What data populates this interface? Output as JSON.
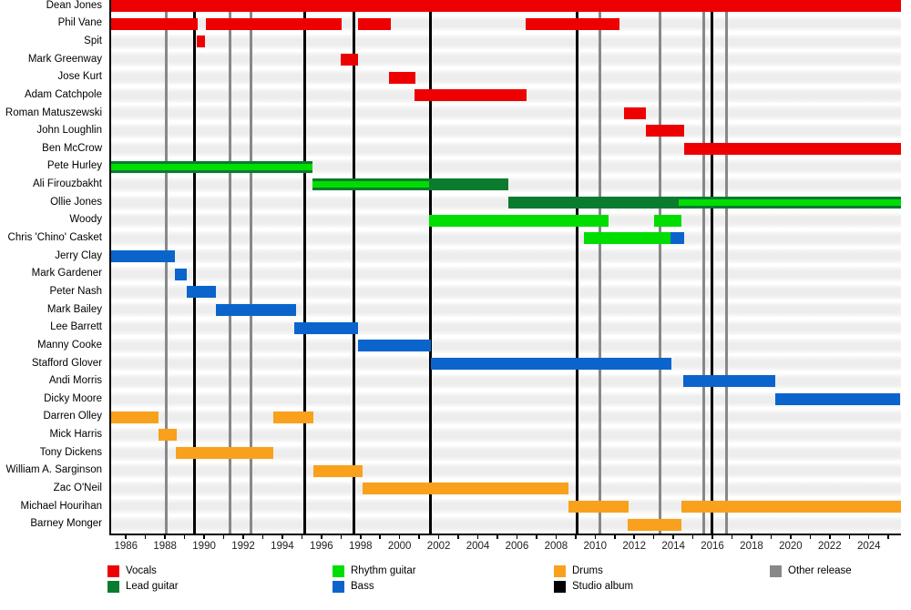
{
  "chart_data": {
    "type": "timeline",
    "description": "Band member history gantt timeline (roles over years) with release markers",
    "x_axis": {
      "min": 1985.15,
      "max": 2025.55,
      "minor_tick_step": 1,
      "minor_tick_start": 1986,
      "minor_tick_end": 2025,
      "tick_labels": [
        1986,
        1988,
        1990,
        1992,
        1994,
        1996,
        1998,
        2000,
        2002,
        2004,
        2006,
        2008,
        2010,
        2012,
        2014,
        2016,
        2018,
        2020,
        2022,
        2024
      ]
    },
    "role_colors": {
      "vocals": "#EE0000",
      "lead_guitar": "#0B7B30",
      "rhythm_guitar": "#00DD00",
      "bass": "#0B64CC",
      "drums": "#F9A11C"
    },
    "marker_colors": {
      "studio_album": "#000000",
      "other_release": "#888888"
    },
    "members": [
      {
        "name": "Dean Jones",
        "segments": [
          {
            "role": "vocals",
            "start": 1985.15,
            "end": 2025.55
          }
        ]
      },
      {
        "name": "Phil Vane",
        "segments": [
          {
            "role": "vocals",
            "start": 1985.15,
            "end": 1989.6
          },
          {
            "role": "vocals",
            "start": 1990.0,
            "end": 1996.95
          },
          {
            "role": "vocals",
            "start": 1997.8,
            "end": 1999.45
          },
          {
            "role": "vocals",
            "start": 2006.35,
            "end": 2011.15
          }
        ]
      },
      {
        "name": "Spit",
        "segments": [
          {
            "role": "vocals",
            "start": 1989.55,
            "end": 1989.95
          }
        ]
      },
      {
        "name": "Mark Greenway",
        "segments": [
          {
            "role": "vocals",
            "start": 1996.9,
            "end": 1997.8
          }
        ]
      },
      {
        "name": "Jose Kurt",
        "segments": [
          {
            "role": "vocals",
            "start": 1999.35,
            "end": 2000.7
          }
        ]
      },
      {
        "name": "Adam Catchpole",
        "segments": [
          {
            "role": "vocals",
            "start": 2000.65,
            "end": 2006.4
          }
        ]
      },
      {
        "name": "Roman Matuszewski",
        "segments": [
          {
            "role": "vocals",
            "start": 2011.4,
            "end": 2012.5
          }
        ]
      },
      {
        "name": "John Loughlin",
        "segments": [
          {
            "role": "vocals",
            "start": 2012.5,
            "end": 2014.45
          }
        ]
      },
      {
        "name": "Ben McCrow",
        "segments": [
          {
            "role": "vocals",
            "start": 2014.45,
            "end": 2025.55
          }
        ]
      },
      {
        "name": "Pete Hurley",
        "segments": [
          {
            "role": "lead_guitar",
            "overlay": "rhythm_guitar",
            "start": 1985.15,
            "end": 1995.45
          }
        ]
      },
      {
        "name": "Ali Firouzbakht",
        "segments": [
          {
            "role": "lead_guitar",
            "overlay": "rhythm_guitar",
            "start": 1995.45,
            "end": 2001.4
          },
          {
            "role": "lead_guitar",
            "start": 2001.4,
            "end": 2005.45
          }
        ]
      },
      {
        "name": "Ollie Jones",
        "segments": [
          {
            "role": "lead_guitar",
            "start": 2005.45,
            "end": 2014.2
          },
          {
            "role": "lead_guitar",
            "overlay": "rhythm_guitar",
            "start": 2014.2,
            "end": 2025.55
          }
        ]
      },
      {
        "name": "Woody",
        "segments": [
          {
            "role": "rhythm_guitar",
            "start": 2001.4,
            "end": 2010.6
          },
          {
            "role": "rhythm_guitar",
            "start": 2012.9,
            "end": 2014.3
          }
        ]
      },
      {
        "name": "Chris 'Chino' Casket",
        "segments": [
          {
            "role": "rhythm_guitar",
            "start": 2009.35,
            "end": 2013.75
          },
          {
            "role": "bass",
            "start": 2013.75,
            "end": 2014.45
          }
        ]
      },
      {
        "name": "Jerry Clay",
        "segments": [
          {
            "role": "bass",
            "start": 1985.15,
            "end": 1988.4
          }
        ]
      },
      {
        "name": "Mark Gardener",
        "segments": [
          {
            "role": "bass",
            "start": 1988.4,
            "end": 1989.0
          }
        ]
      },
      {
        "name": "Peter Nash",
        "segments": [
          {
            "role": "bass",
            "start": 1989.0,
            "end": 1990.5
          }
        ]
      },
      {
        "name": "Mark Bailey",
        "segments": [
          {
            "role": "bass",
            "start": 1990.5,
            "end": 1994.6
          }
        ]
      },
      {
        "name": "Lee Barrett",
        "segments": [
          {
            "role": "bass",
            "start": 1994.5,
            "end": 1997.8
          }
        ]
      },
      {
        "name": "Manny Cooke",
        "segments": [
          {
            "role": "bass",
            "start": 1997.8,
            "end": 2001.5
          }
        ]
      },
      {
        "name": "Stafford Glover",
        "segments": [
          {
            "role": "bass",
            "start": 2001.5,
            "end": 2013.8
          }
        ]
      },
      {
        "name": "Andi Morris",
        "segments": [
          {
            "role": "bass",
            "start": 2014.4,
            "end": 2019.1
          }
        ]
      },
      {
        "name": "Dicky Moore",
        "segments": [
          {
            "role": "bass",
            "start": 2019.1,
            "end": 2025.5
          }
        ]
      },
      {
        "name": "Darren Olley",
        "segments": [
          {
            "role": "drums",
            "start": 1985.15,
            "end": 1987.55
          },
          {
            "role": "drums",
            "start": 1993.45,
            "end": 1995.5
          }
        ]
      },
      {
        "name": "Mick Harris",
        "segments": [
          {
            "role": "drums",
            "start": 1987.55,
            "end": 1988.5
          }
        ]
      },
      {
        "name": "Tony Dickens",
        "segments": [
          {
            "role": "drums",
            "start": 1988.45,
            "end": 1993.45
          }
        ]
      },
      {
        "name": "William A. Sarginson",
        "segments": [
          {
            "role": "drums",
            "start": 1995.5,
            "end": 1998.0
          }
        ]
      },
      {
        "name": "Zac O'Neil",
        "segments": [
          {
            "role": "drums",
            "start": 1998.0,
            "end": 2008.55
          },
          {
            "role": "drums",
            "start": 2008.55,
            "end": 2008.55
          }
        ]
      },
      {
        "name": "Michael Hourihan",
        "segments": [
          {
            "role": "drums",
            "start": 2008.55,
            "end": 2011.6
          },
          {
            "role": "drums",
            "start": 2014.3,
            "end": 2025.55
          }
        ]
      },
      {
        "name": "Barney Monger",
        "segments": [
          {
            "role": "drums",
            "start": 2011.55,
            "end": 2014.3
          }
        ]
      }
    ],
    "releases": {
      "studio_album_years": [
        1989.4,
        1995.04,
        1997.56,
        2001.48,
        2008.98,
        2015.88
      ],
      "other_release_years": [
        1987.96,
        1991.22,
        1992.29,
        2010.15,
        2013.23,
        2015.46,
        2016.63
      ]
    },
    "legend": {
      "rows": [
        [
          {
            "label": "Vocals",
            "color": "#EE0000"
          },
          {
            "label": "Rhythm guitar",
            "color": "#00DD00"
          },
          {
            "label": "Drums",
            "color": "#F9A11C"
          },
          {
            "label": "Other release",
            "color": "#888888"
          }
        ],
        [
          {
            "label": "Lead guitar",
            "color": "#0B7B30"
          },
          {
            "label": "Bass",
            "color": "#0B64CC"
          },
          {
            "label": "Studio album",
            "color": "#000000"
          }
        ]
      ],
      "column_offsets": [
        0,
        247,
        490,
        727
      ]
    }
  }
}
